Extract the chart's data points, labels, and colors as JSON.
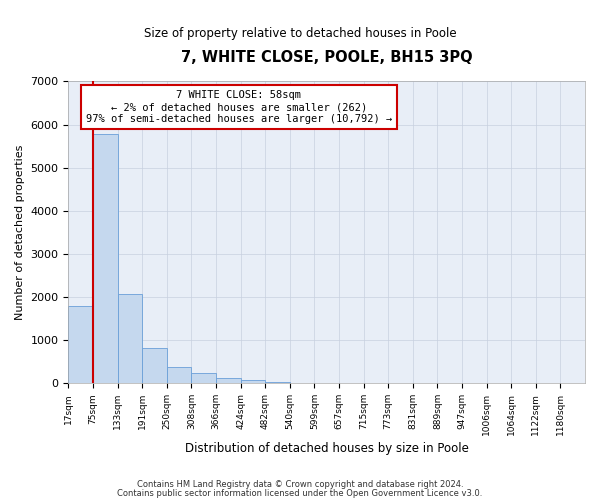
{
  "title": "7, WHITE CLOSE, POOLE, BH15 3PQ",
  "subtitle": "Size of property relative to detached houses in Poole",
  "xlabel": "Distribution of detached houses by size in Poole",
  "ylabel": "Number of detached properties",
  "bar_values": [
    1780,
    5780,
    2060,
    810,
    370,
    235,
    120,
    65,
    35,
    0,
    0,
    0,
    0,
    0,
    0,
    0,
    0,
    0,
    0,
    0,
    0
  ],
  "bar_labels": [
    "17sqm",
    "75sqm",
    "133sqm",
    "191sqm",
    "250sqm",
    "308sqm",
    "366sqm",
    "424sqm",
    "482sqm",
    "540sqm",
    "599sqm",
    "657sqm",
    "715sqm",
    "773sqm",
    "831sqm",
    "889sqm",
    "947sqm",
    "1006sqm",
    "1064sqm",
    "1122sqm",
    "1180sqm"
  ],
  "ylim": [
    0,
    7000
  ],
  "yticks": [
    0,
    1000,
    2000,
    3000,
    4000,
    5000,
    6000,
    7000
  ],
  "bar_color": "#c5d8ee",
  "bar_edge_color": "#6a9fd8",
  "property_line_color": "#cc0000",
  "annotation_text": "7 WHITE CLOSE: 58sqm\n← 2% of detached houses are smaller (262)\n97% of semi-detached houses are larger (10,792) →",
  "annotation_box_color": "#ffffff",
  "annotation_border_color": "#cc0000",
  "footer_line1": "Contains HM Land Registry data © Crown copyright and database right 2024.",
  "footer_line2": "Contains public sector information licensed under the Open Government Licence v3.0.",
  "background_color": "#ffffff",
  "plot_bg_color": "#e8eef7",
  "grid_color": "#c8d0e0"
}
